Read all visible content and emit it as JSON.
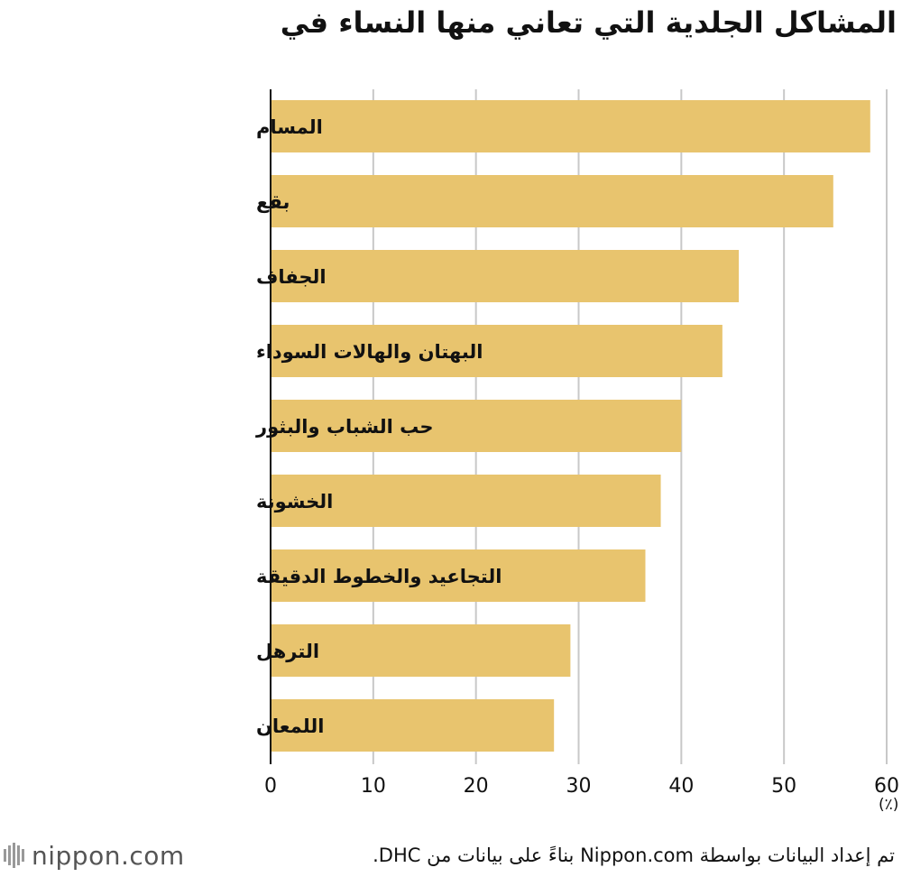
{
  "chart_data": {
    "type": "bar",
    "orientation": "horizontal",
    "title": "المشاكل الجلدية التي تعاني منها النساء في",
    "categories": [
      "المسام",
      "بقع",
      "الجفاف",
      "البهتان والهالات السوداء",
      "حب الشباب والبثور",
      "الخشونة",
      "التجاعيد والخطوط الدقيقة",
      "الترهل",
      "اللمعان"
    ],
    "values": [
      58.4,
      54.8,
      45.6,
      44.0,
      40.0,
      38.0,
      36.5,
      29.2,
      27.6
    ],
    "xlim": [
      0,
      60
    ],
    "xticks": [
      0,
      10,
      20,
      30,
      40,
      50,
      60
    ],
    "unit": "(٪)",
    "grid": true,
    "bar_color": "#e8c46e"
  },
  "footer": {
    "source": "تم إعداد البيانات بواسطة Nippon.com بناءً على بيانات من DHC.",
    "logo_text": "nippon.com"
  }
}
